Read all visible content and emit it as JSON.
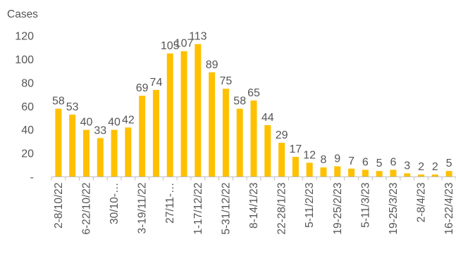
{
  "colors": {
    "bar": "#FFC000",
    "axis": "#BFBFBF",
    "text": "#555555",
    "background": "#FFFFFF"
  },
  "chart_data": {
    "type": "bar",
    "title": "",
    "xlabel": "",
    "ylabel": "Cases",
    "ylim": [
      0,
      120
    ],
    "yticks": [
      {
        "value": 0,
        "label": "-"
      },
      {
        "value": 20,
        "label": "20"
      },
      {
        "value": 40,
        "label": "40"
      },
      {
        "value": 60,
        "label": "60"
      },
      {
        "value": 80,
        "label": "80"
      },
      {
        "value": 100,
        "label": "100"
      },
      {
        "value": 120,
        "label": "120"
      }
    ],
    "grid": false,
    "legend": "none",
    "values": [
      58,
      53,
      40,
      33,
      40,
      42,
      69,
      74,
      105,
      107,
      113,
      89,
      75,
      58,
      65,
      44,
      29,
      17,
      12,
      8,
      9,
      7,
      6,
      5,
      6,
      3,
      2,
      2,
      5
    ],
    "x_tick_labels": [
      {
        "index": 0,
        "label": "2-8/10/22"
      },
      {
        "index": 2,
        "label": "6-22/10/22"
      },
      {
        "index": 4,
        "label": "30/10-…"
      },
      {
        "index": 6,
        "label": "3-19/11/22"
      },
      {
        "index": 8,
        "label": "27/11-…"
      },
      {
        "index": 10,
        "label": "1-17/12/22"
      },
      {
        "index": 12,
        "label": "5-31/12/22"
      },
      {
        "index": 14,
        "label": "8-14/1/23"
      },
      {
        "index": 16,
        "label": "22-28/1/23"
      },
      {
        "index": 18,
        "label": "5-11/2/23"
      },
      {
        "index": 20,
        "label": "19-25/2/23"
      },
      {
        "index": 22,
        "label": "5-11/3/23"
      },
      {
        "index": 24,
        "label": "19-25/3/23"
      },
      {
        "index": 26,
        "label": "2-8/4/23"
      },
      {
        "index": 28,
        "label": "16-22/4/23"
      }
    ]
  }
}
